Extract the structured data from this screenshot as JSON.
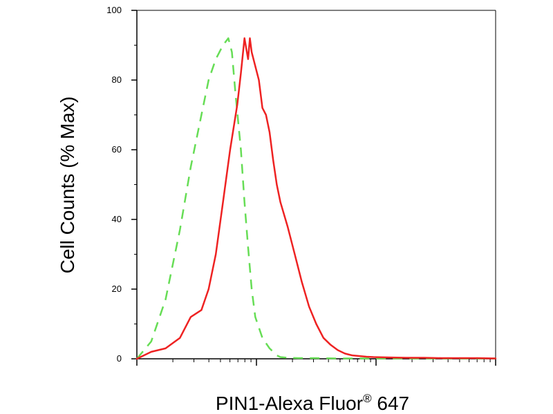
{
  "chart_data": {
    "type": "line",
    "title": "",
    "xlabel": "PIN1-Alexa Fluor",
    "xlabel_superscript": "®",
    "xlabel_suffix": " 647",
    "ylabel": "Cell Counts (% Max)",
    "xscale": "log",
    "xlim": [
      0,
      1
    ],
    "ylim": [
      0,
      100
    ],
    "yticks": [
      0,
      20,
      40,
      60,
      80,
      100
    ],
    "ytick_labels": [
      "0",
      "20",
      "40",
      "60",
      "80",
      "100"
    ],
    "grid": false,
    "legend": "none",
    "series": [
      {
        "style": "dashed",
        "color": "#66dd55",
        "x": [
          0.0,
          0.04,
          0.08,
          0.12,
          0.15,
          0.18,
          0.2,
          0.22,
          0.24,
          0.255,
          0.265,
          0.275,
          0.29,
          0.3,
          0.31,
          0.32,
          0.33,
          0.35,
          0.37,
          0.38,
          0.39,
          0.4,
          0.42,
          0.45,
          0.5,
          0.56,
          0.62,
          1.0
        ],
        "y": [
          0,
          5,
          17,
          37,
          55,
          70,
          80,
          86,
          90,
          92,
          88,
          76,
          60,
          45,
          32,
          20,
          12,
          6,
          3,
          2,
          1,
          0.5,
          0.3,
          0.2,
          0.2,
          0.1,
          0.1,
          0.1
        ]
      },
      {
        "style": "solid",
        "color": "#ee2222",
        "x": [
          0.0,
          0.04,
          0.08,
          0.12,
          0.15,
          0.18,
          0.19,
          0.2,
          0.22,
          0.24,
          0.26,
          0.28,
          0.29,
          0.3,
          0.31,
          0.315,
          0.32,
          0.33,
          0.34,
          0.35,
          0.36,
          0.37,
          0.38,
          0.39,
          0.4,
          0.42,
          0.44,
          0.46,
          0.48,
          0.5,
          0.52,
          0.54,
          0.56,
          0.58,
          0.6,
          0.62,
          0.64,
          0.66,
          0.7,
          0.75,
          0.8,
          0.85,
          0.9,
          0.95,
          1.0
        ],
        "y": [
          0,
          2,
          3,
          6,
          12,
          14,
          17,
          20,
          30,
          45,
          60,
          73,
          82,
          92,
          86,
          92,
          88,
          84,
          80,
          72,
          70,
          65,
          57,
          50,
          45,
          38,
          30,
          22,
          15,
          10,
          6,
          4,
          2.5,
          1.5,
          1,
          0.8,
          0.6,
          0.5,
          0.4,
          0.3,
          0.3,
          0.2,
          0.2,
          0.2,
          0.1
        ]
      }
    ]
  }
}
